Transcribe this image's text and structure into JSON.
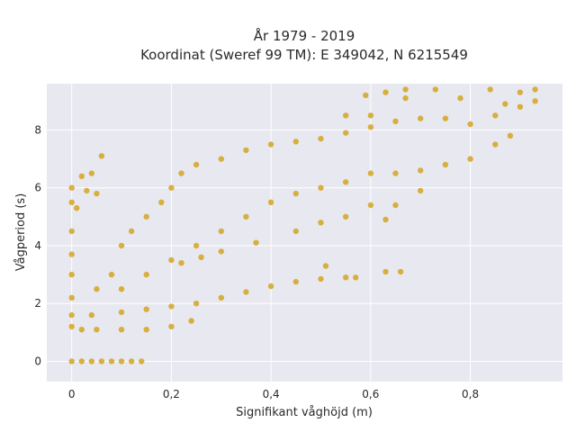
{
  "chart_data": {
    "type": "scatter",
    "title_line1": "År 1979 - 2019",
    "title_line2": "Koordinat (Sweref 99 TM): E 349042, N 6215549",
    "xlabel": "Signifikant våghöjd (m)",
    "ylabel": "Vågperiod (s)",
    "xlim": [
      -0.05,
      0.985
    ],
    "ylim": [
      -0.7,
      9.6
    ],
    "x_ticks": [
      0,
      0.2,
      0.4,
      0.6,
      0.8
    ],
    "x_tick_labels": [
      "0",
      "0,2",
      "0,4",
      "0,6",
      "0,8"
    ],
    "y_ticks": [
      0,
      2,
      4,
      6,
      8
    ],
    "y_tick_labels": [
      "0",
      "2",
      "4",
      "6",
      "8"
    ],
    "grid": true,
    "marker_color": "#D4A520",
    "plot_background": "#E8E8F0",
    "points": [
      [
        0.0,
        0.0
      ],
      [
        0.02,
        0.0
      ],
      [
        0.04,
        0.0
      ],
      [
        0.06,
        0.0
      ],
      [
        0.08,
        0.0
      ],
      [
        0.1,
        0.0
      ],
      [
        0.12,
        0.0
      ],
      [
        0.14,
        0.0
      ],
      [
        0.0,
        1.2
      ],
      [
        0.0,
        1.6
      ],
      [
        0.0,
        2.2
      ],
      [
        0.0,
        3.0
      ],
      [
        0.0,
        3.7
      ],
      [
        0.0,
        4.5
      ],
      [
        0.0,
        5.5
      ],
      [
        0.0,
        6.0
      ],
      [
        0.01,
        5.3
      ],
      [
        0.02,
        6.4
      ],
      [
        0.04,
        6.5
      ],
      [
        0.06,
        7.1
      ],
      [
        0.03,
        5.9
      ],
      [
        0.05,
        5.8
      ],
      [
        0.02,
        1.1
      ],
      [
        0.05,
        1.1
      ],
      [
        0.1,
        1.1
      ],
      [
        0.15,
        1.1
      ],
      [
        0.2,
        1.2
      ],
      [
        0.24,
        1.4
      ],
      [
        0.04,
        1.6
      ],
      [
        0.1,
        1.7
      ],
      [
        0.15,
        1.8
      ],
      [
        0.2,
        1.9
      ],
      [
        0.25,
        2.0
      ],
      [
        0.3,
        2.2
      ],
      [
        0.35,
        2.4
      ],
      [
        0.4,
        2.6
      ],
      [
        0.45,
        2.75
      ],
      [
        0.5,
        2.85
      ],
      [
        0.55,
        2.9
      ],
      [
        0.57,
        2.9
      ],
      [
        0.63,
        3.1
      ],
      [
        0.66,
        3.1
      ],
      [
        0.51,
        3.3
      ],
      [
        0.05,
        2.5
      ],
      [
        0.08,
        3.0
      ],
      [
        0.1,
        4.0
      ],
      [
        0.12,
        4.5
      ],
      [
        0.15,
        5.0
      ],
      [
        0.18,
        5.5
      ],
      [
        0.2,
        6.0
      ],
      [
        0.22,
        6.5
      ],
      [
        0.25,
        6.8
      ],
      [
        0.1,
        2.5
      ],
      [
        0.15,
        3.0
      ],
      [
        0.2,
        3.5
      ],
      [
        0.25,
        4.0
      ],
      [
        0.3,
        4.5
      ],
      [
        0.35,
        5.0
      ],
      [
        0.4,
        5.5
      ],
      [
        0.45,
        5.8
      ],
      [
        0.5,
        6.0
      ],
      [
        0.55,
        6.2
      ],
      [
        0.3,
        7.0
      ],
      [
        0.35,
        7.3
      ],
      [
        0.4,
        7.5
      ],
      [
        0.45,
        7.6
      ],
      [
        0.5,
        7.7
      ],
      [
        0.55,
        7.9
      ],
      [
        0.6,
        8.1
      ],
      [
        0.65,
        8.3
      ],
      [
        0.7,
        8.4
      ],
      [
        0.75,
        8.4
      ],
      [
        0.8,
        8.2
      ],
      [
        0.85,
        8.5
      ],
      [
        0.9,
        8.8
      ],
      [
        0.93,
        9.0
      ],
      [
        0.6,
        6.5
      ],
      [
        0.65,
        6.5
      ],
      [
        0.7,
        6.6
      ],
      [
        0.75,
        6.8
      ],
      [
        0.8,
        7.0
      ],
      [
        0.85,
        7.5
      ],
      [
        0.88,
        7.8
      ],
      [
        0.37,
        4.1
      ],
      [
        0.45,
        4.5
      ],
      [
        0.5,
        4.8
      ],
      [
        0.55,
        5.0
      ],
      [
        0.6,
        5.4
      ],
      [
        0.65,
        5.4
      ],
      [
        0.7,
        5.9
      ],
      [
        0.63,
        4.9
      ],
      [
        0.3,
        3.8
      ],
      [
        0.22,
        3.4
      ],
      [
        0.26,
        3.6
      ],
      [
        0.67,
        9.4
      ],
      [
        0.73,
        9.4
      ],
      [
        0.63,
        9.3
      ],
      [
        0.84,
        9.4
      ],
      [
        0.9,
        9.3
      ],
      [
        0.93,
        9.4
      ],
      [
        0.59,
        9.2
      ],
      [
        0.67,
        9.1
      ],
      [
        0.78,
        9.1
      ],
      [
        0.87,
        8.9
      ],
      [
        0.55,
        8.5
      ],
      [
        0.6,
        8.5
      ]
    ]
  }
}
